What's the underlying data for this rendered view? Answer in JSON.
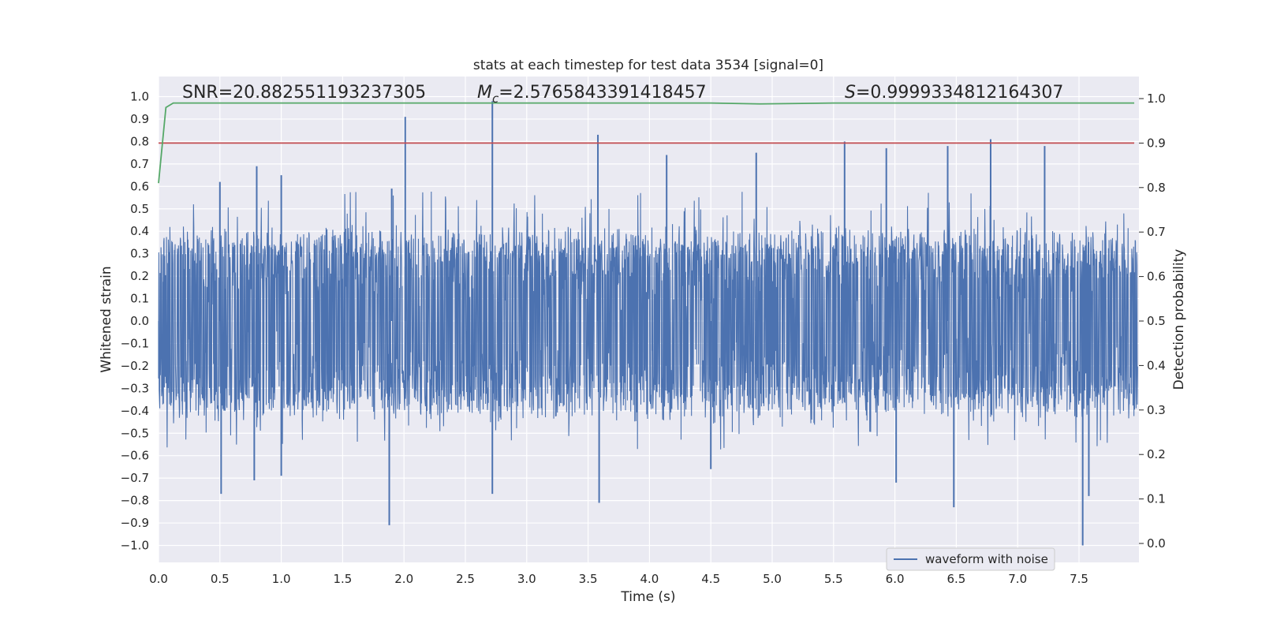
{
  "chart_data": {
    "type": "line",
    "title": "stats at each timestep for test data 3534 [signal=0]",
    "xlabel": "Time (s)",
    "ylabel": "Whitened strain",
    "y2label": "Detection probability",
    "xlim": [
      0.0,
      8.0
    ],
    "ylim": [
      -1.09,
      1.07
    ],
    "y2lim": [
      -0.045,
      1.045
    ],
    "x_ticks": [
      "0.0",
      "0.5",
      "1.0",
      "1.5",
      "2.0",
      "2.5",
      "3.0",
      "3.5",
      "4.0",
      "4.5",
      "5.0",
      "5.5",
      "6.0",
      "6.5",
      "7.0",
      "7.5"
    ],
    "y_ticks": [
      "1.0",
      "0.9",
      "0.8",
      "0.7",
      "0.6",
      "0.5",
      "0.4",
      "0.3",
      "0.2",
      "0.1",
      "0.0",
      "−0.1",
      "−0.2",
      "−0.3",
      "−0.4",
      "−0.5",
      "−0.6",
      "−0.7",
      "−0.8",
      "−0.9",
      "−1.0"
    ],
    "y2_ticks": [
      "1.0",
      "0.9",
      "0.8",
      "0.7",
      "0.6",
      "0.5",
      "0.4",
      "0.3",
      "0.2",
      "0.1",
      "0.0"
    ],
    "annotations": {
      "snr": "SNR=20.882551193237305",
      "mc_symbol": "M",
      "mc_sub": "c",
      "mc_value": "=2.5765843391418457",
      "s_symbol": "S",
      "s_value": "=0.9999334812164307"
    },
    "series": [
      {
        "name": "waveform with noise",
        "axis": "left",
        "color": "#4c72b0",
        "envelope": {
          "typical_upper": 0.38,
          "typical_lower": -0.4,
          "peaks_upper": [
            [
              0.5,
              0.62
            ],
            [
              0.8,
              0.69
            ],
            [
              1.0,
              0.65
            ],
            [
              1.9,
              0.59
            ],
            [
              2.01,
              0.91
            ],
            [
              2.72,
              0.98
            ],
            [
              3.58,
              0.83
            ],
            [
              4.14,
              0.74
            ],
            [
              4.87,
              0.75
            ],
            [
              5.59,
              0.8
            ],
            [
              5.93,
              0.77
            ],
            [
              6.43,
              0.78
            ],
            [
              6.78,
              0.81
            ],
            [
              7.22,
              0.78
            ]
          ],
          "peaks_lower": [
            [
              0.51,
              -0.77
            ],
            [
              0.78,
              -0.71
            ],
            [
              1.0,
              -0.69
            ],
            [
              1.88,
              -0.91
            ],
            [
              2.72,
              -0.77
            ],
            [
              3.59,
              -0.81
            ],
            [
              4.5,
              -0.66
            ],
            [
              6.01,
              -0.72
            ],
            [
              6.48,
              -0.83
            ],
            [
              7.53,
              -1.0
            ],
            [
              7.58,
              -0.78
            ]
          ]
        }
      },
      {
        "name": "detection probability",
        "axis": "right",
        "color": "#55a868",
        "x": [
          0.0,
          0.06,
          0.12,
          2.0,
          4.5,
          4.9,
          5.5,
          7.95
        ],
        "values": [
          0.81,
          0.98,
          0.99,
          0.99,
          0.99,
          0.988,
          0.99,
          0.99
        ]
      },
      {
        "name": "threshold",
        "axis": "right",
        "color": "#c44e52",
        "x": [
          0.0,
          7.95
        ],
        "values": [
          0.9,
          0.9
        ]
      }
    ],
    "legend": {
      "location": "lower-right",
      "entries": [
        {
          "label": "waveform with noise",
          "color": "#4c72b0"
        }
      ]
    },
    "grid": true
  }
}
